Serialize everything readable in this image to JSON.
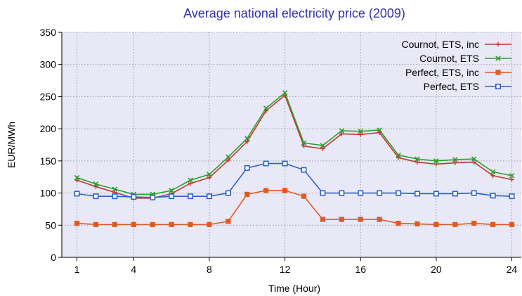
{
  "chart_data": {
    "type": "line",
    "title": "Average national electricity price (2009)",
    "xlabel": "Time (Hour)",
    "ylabel": "EUR/MWh",
    "x": [
      1,
      2,
      3,
      4,
      5,
      6,
      7,
      8,
      9,
      10,
      11,
      12,
      13,
      14,
      15,
      16,
      17,
      18,
      19,
      20,
      21,
      22,
      23,
      24
    ],
    "xticks": [
      1,
      4,
      8,
      12,
      16,
      20,
      24
    ],
    "yticks": [
      0,
      50,
      100,
      150,
      200,
      250,
      300,
      350
    ],
    "xlim": [
      0.2,
      24.5
    ],
    "ylim": [
      0,
      350
    ],
    "grid": true,
    "legend_position": "top-right",
    "colors": {
      "plot_background": "#e8e8f6",
      "grid": "#9a9a9a",
      "title": "#3333aa"
    },
    "series": [
      {
        "name": "Cournot, ETS, inc",
        "color": "#c0392b",
        "marker": "plus",
        "values": [
          120,
          110,
          101,
          92,
          92,
          99,
          115,
          124,
          151,
          180,
          228,
          252,
          173,
          169,
          192,
          191,
          194,
          155,
          148,
          145,
          147,
          148,
          127,
          121
        ]
      },
      {
        "name": "Cournot, ETS",
        "color": "#2e9e2e",
        "marker": "x",
        "values": [
          124,
          114,
          106,
          98,
          98,
          104,
          120,
          129,
          156,
          185,
          232,
          256,
          178,
          174,
          197,
          196,
          198,
          159,
          153,
          150,
          152,
          153,
          133,
          127
        ]
      },
      {
        "name": "Perfect, ETS, inc",
        "color": "#e25a1c",
        "marker": "square",
        "values": [
          53,
          51,
          51,
          51,
          51,
          51,
          51,
          51,
          56,
          98,
          104,
          104,
          95,
          59,
          59,
          59,
          59,
          53,
          52,
          51,
          51,
          53,
          51,
          51
        ]
      },
      {
        "name": "Perfect, ETS",
        "color": "#2d62c7",
        "marker": "square-open",
        "values": [
          99,
          95,
          95,
          94,
          93,
          95,
          95,
          95,
          100,
          139,
          146,
          146,
          136,
          100,
          100,
          100,
          100,
          100,
          99,
          99,
          99,
          100,
          96,
          95
        ]
      }
    ]
  }
}
